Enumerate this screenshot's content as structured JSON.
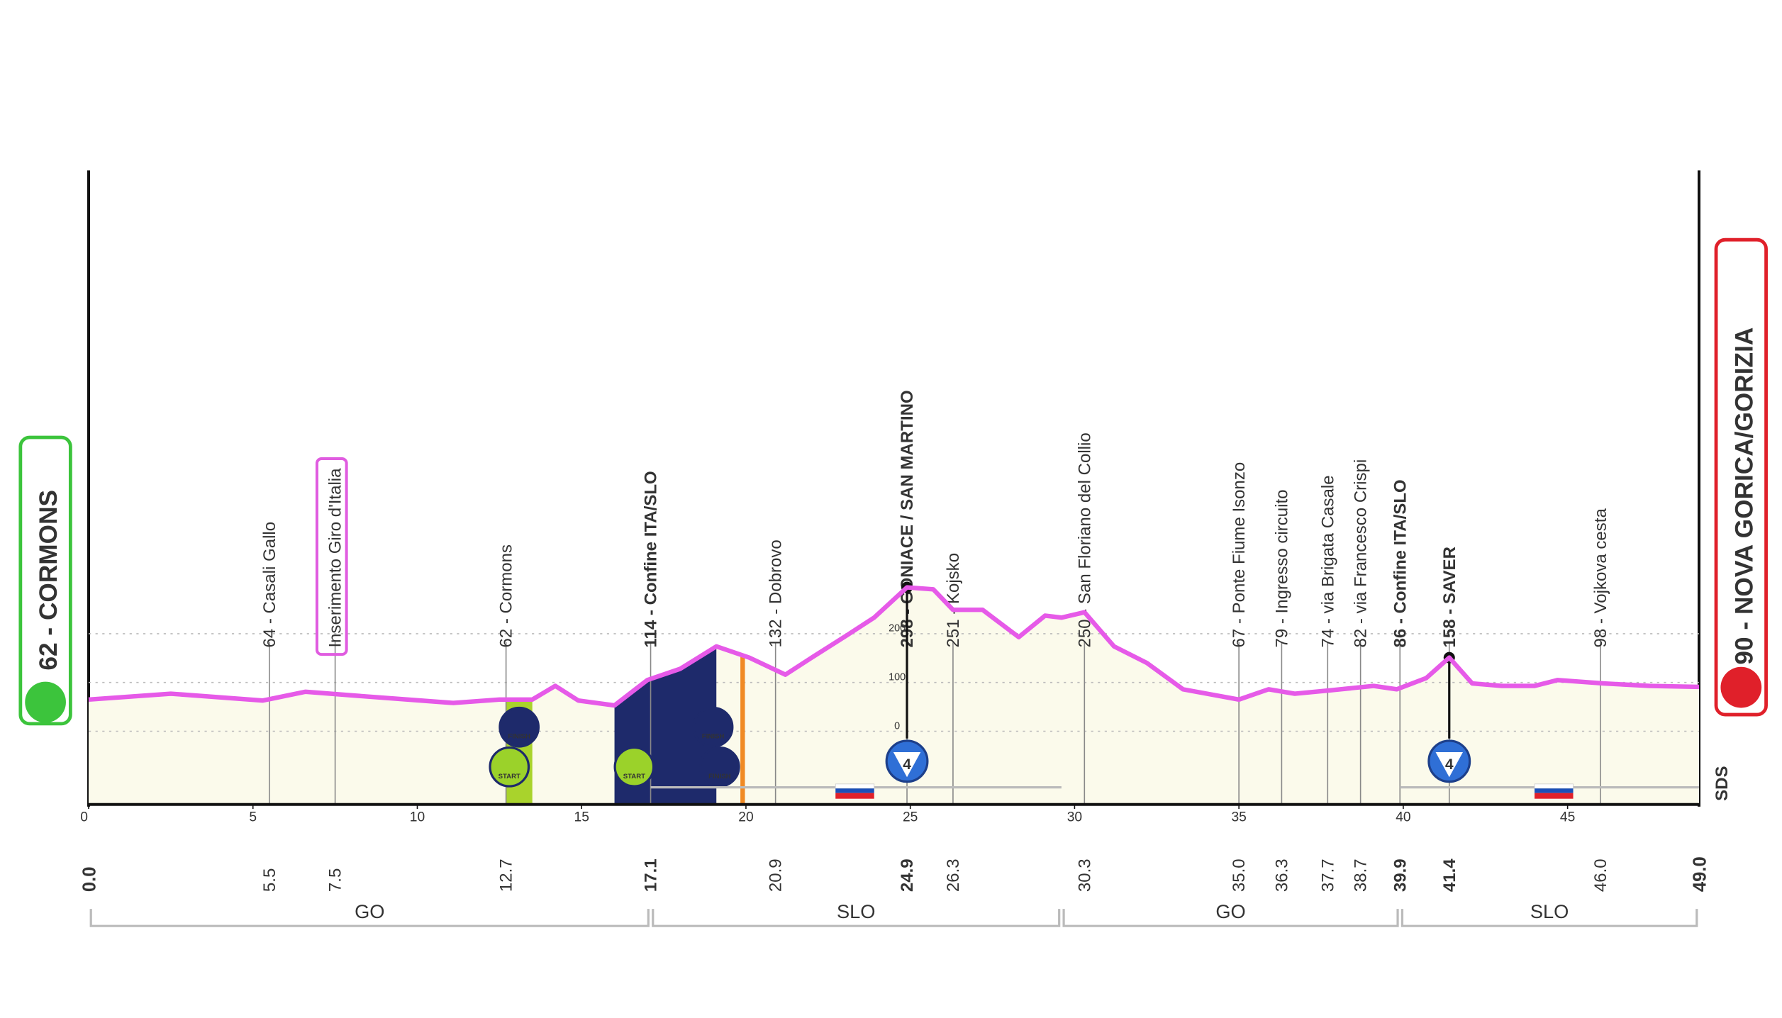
{
  "chart_data": {
    "type": "area",
    "start": "62 - CORMONS",
    "finish": "90 - NOVA GORICA/GORIZIA",
    "logo": "SDS",
    "color": "#e65ae8",
    "x": [
      0,
      2.5,
      5.3,
      6.6,
      8.7,
      11.1,
      12.5,
      13.5,
      14.2,
      14.9,
      16,
      17,
      18,
      19.1,
      20.1,
      21.2,
      22,
      23.1,
      23.9,
      24.9,
      25.7,
      26.3,
      27.2,
      28.3,
      29.1,
      29.6,
      30.3,
      31.2,
      32.2,
      33.3,
      35,
      35.9,
      36.7,
      37.8,
      39.1,
      39.8,
      40.7,
      41.4,
      42.1,
      43,
      44,
      44.7,
      46.1,
      47.5,
      49
    ],
    "values": [
      65,
      77,
      63,
      81,
      70,
      58,
      65,
      65,
      93,
      63,
      53,
      105,
      128,
      174,
      151,
      116,
      151,
      198,
      233,
      295,
      291,
      249,
      249,
      193,
      237,
      233,
      244,
      174,
      140,
      86,
      65,
      86,
      77,
      84,
      93,
      86,
      109,
      151,
      98,
      93,
      93,
      105,
      98,
      93,
      91
    ],
    "xlim": [
      0,
      49
    ],
    "xticks": [
      0,
      5,
      10,
      15,
      20,
      25,
      30,
      35,
      40,
      45
    ],
    "ylim": [
      -150,
      1150
    ],
    "yticks": [
      0,
      100,
      200
    ],
    "endpoints": [
      {
        "value": 0,
        "label": "0.0"
      },
      {
        "value": 49,
        "label": "49.0"
      }
    ],
    "waypoints": [
      {
        "km": 5.5,
        "label": "64 - Casali Gallo"
      },
      {
        "km": 7.5,
        "label": "Inserimento Giro d'Italia"
      },
      {
        "km": 12.7,
        "label": "62 - Cormons"
      },
      {
        "km": 17.1,
        "label": "114 - Confine ITA/SLO"
      },
      {
        "km": 20.9,
        "label": "132 - Dobrovo"
      },
      {
        "km": 24.9,
        "label": "298 - GONIACE / SAN MARTINO"
      },
      {
        "km": 26.3,
        "label": "251 - Kojsko"
      },
      {
        "km": 30.3,
        "label": "250 - San Floriano del Collio"
      },
      {
        "km": {
          "value": 35,
          "label": "35.0"
        },
        "label": "67 - Ponte Fiume Isonzo"
      },
      {
        "km": 36.3,
        "label": "79 - Ingresso circuito"
      },
      {
        "km": 37.7,
        "label": "74 - via Brigata Casale"
      },
      {
        "km": 38.7,
        "label": "82 - via Francesco Crispi"
      },
      {
        "km": 39.9,
        "label": "86 - Confine ITA/SLO"
      },
      {
        "km": 41.4,
        "label": "158 - SAVER"
      },
      {
        "km": {
          "value": 46,
          "label": "46.0"
        },
        "label": "98 - Vojkova cesta"
      }
    ],
    "climbs": [
      {
        "km": 24.9,
        "category": 4
      },
      {
        "km": 41.4,
        "category": 4
      }
    ],
    "regions": [
      {
        "name": "GO",
        "from": 0,
        "to": 17.1
      },
      {
        "name": "SLO",
        "from": 17.1,
        "to": 29.6
      },
      {
        "name": "GO",
        "from": 29.6,
        "to": 39.9
      },
      {
        "name": "SLO",
        "from": 39.9,
        "to": 49
      }
    ],
    "icons": [
      {
        "km": 13.1,
        "label": "FINISH",
        "row": 0
      },
      {
        "km": 12.8,
        "label": "START",
        "row": 1
      },
      {
        "km": 16.6,
        "label": "START",
        "row": 1
      },
      {
        "km": 19.0,
        "label": "FINISH",
        "row": 0
      },
      {
        "km": 19.2,
        "label": "FINISH",
        "row": 1
      }
    ]
  }
}
